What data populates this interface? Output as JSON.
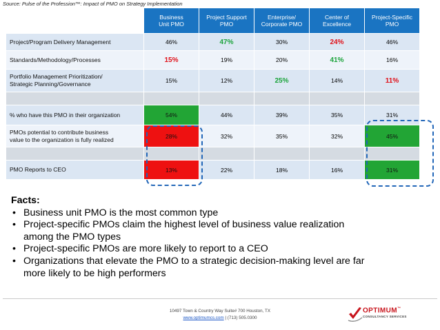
{
  "source": "Source: Pulse of the Profession™: Impact of PMO on Strategy Implementation",
  "table": {
    "headers": [
      {
        "line1": "Business",
        "line2": "Unit PMO"
      },
      {
        "line1": "Project Support",
        "line2": "PMO"
      },
      {
        "line1": "Enterprise/",
        "line2": "Corporate PMO"
      },
      {
        "line1": "Center of",
        "line2": "Excellence"
      },
      {
        "line1": "Project-Specific",
        "line2": "PMO"
      }
    ],
    "rows": [
      {
        "label1": "Project/Program Delivery Management",
        "label2": "",
        "values": [
          "46%",
          "47%",
          "30%",
          "24%",
          "46%"
        ]
      },
      {
        "label1": "Standards/Methodology/Processes",
        "label2": "",
        "values": [
          "15%",
          "19%",
          "20%",
          "41%",
          "16%"
        ]
      },
      {
        "label1": "Portfolio Management Prioritization/",
        "label2": "Strategic Planning/Governance",
        "values": [
          "15%",
          "12%",
          "25%",
          "14%",
          "11%"
        ]
      },
      {
        "label1": "% who have this PMO in their organization",
        "label2": "",
        "values": [
          "54%",
          "44%",
          "39%",
          "35%",
          "31%"
        ]
      },
      {
        "label1": "PMOs potential to contribute business",
        "label2": "value to the organization is fully realized",
        "values": [
          "28%",
          "32%",
          "35%",
          "32%",
          "45%"
        ]
      },
      {
        "label1": "PMO Reports to CEO",
        "label2": "",
        "values": [
          "13%",
          "22%",
          "18%",
          "16%",
          "31%"
        ]
      }
    ],
    "colors": {
      "header": "#1a74c2",
      "green_text": "#1aa33a",
      "red_text": "#e01018",
      "green_fill": "#22a535",
      "red_fill": "#ee1111"
    }
  },
  "facts": {
    "title": "Facts:",
    "bullet": "•",
    "items": [
      {
        "line1": "Business unit PMO is the most common type",
        "line2": ""
      },
      {
        "line1": "Project-specific PMOs claim the highest level of business value realization",
        "line2": "among the PMO types"
      },
      {
        "line1": "Project-specific PMOs are more likely to report to a CEO",
        "line2": ""
      },
      {
        "line1": "Organizations that elevate the PMO to a strategic decision-making level are far",
        "line2": "more likely to be high performers"
      }
    ]
  },
  "footer": {
    "address": "10497 Town & Country Way Suite# 700 Houston, TX",
    "website": "www.optimumcs.com",
    "separator": " | ",
    "phone": "(713) 505.0300"
  },
  "logo": {
    "name": "OPTIMUM",
    "trademark": "™",
    "tagline": "CONSULTANCY SERVICES",
    "icon": "red-check-swoosh-icon"
  }
}
